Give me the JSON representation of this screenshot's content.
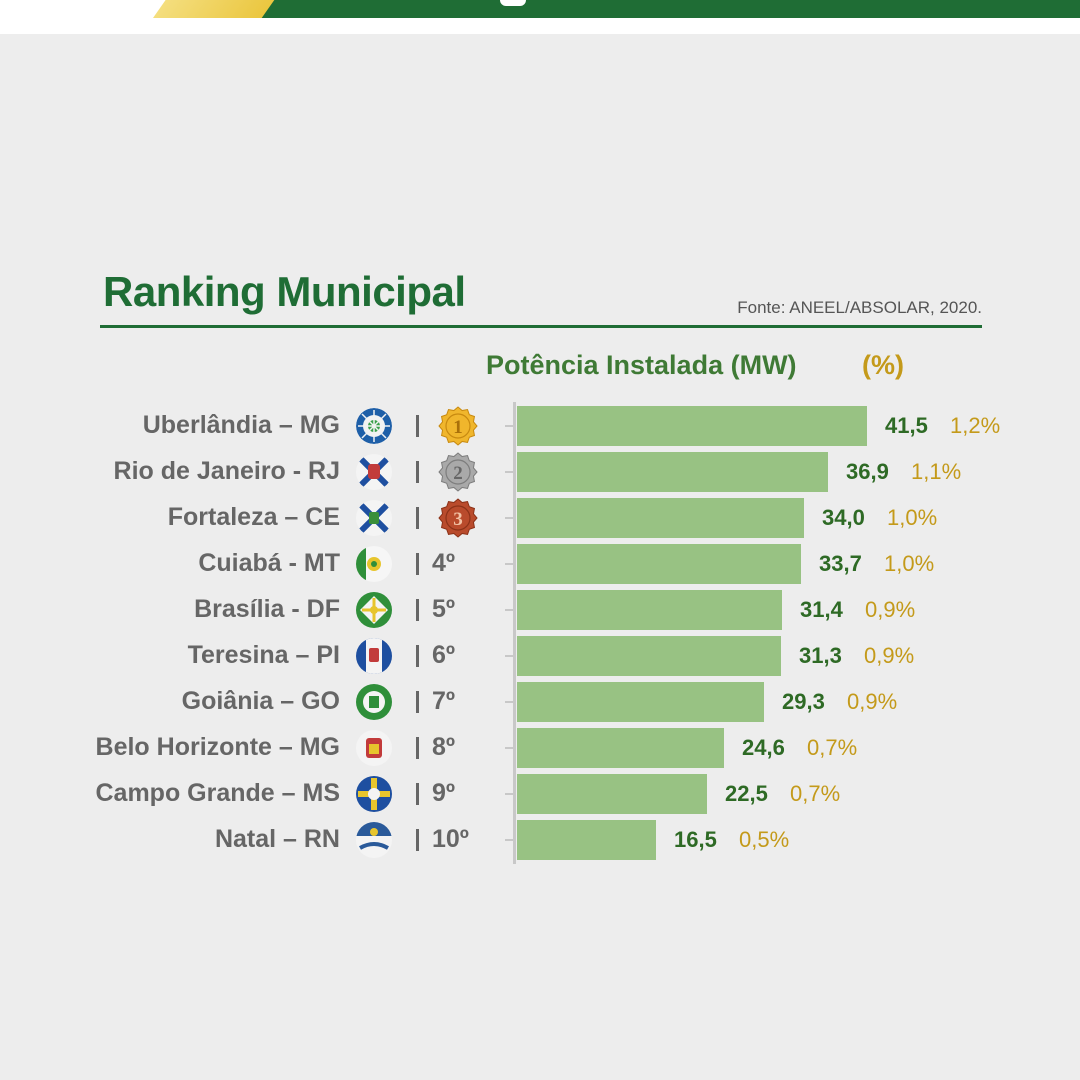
{
  "header": {
    "title": "Ranking Municipal",
    "source": "Fonte: ANEEL/ABSOLAR, 2020.",
    "subtitle_mw": "Potência Instalada (MW)",
    "subtitle_pct": "(%)"
  },
  "colors": {
    "brand_green": "#1f6d35",
    "bar_green": "#98c283",
    "value_green": "#2e6a25",
    "percent_gold": "#c49a1a",
    "label_gray": "#666666"
  },
  "rows": [
    {
      "city": "Uberlândia – MG",
      "rank": "1",
      "emblem": "uberlandia-flag-icon"
    },
    {
      "city": "Rio de Janeiro - RJ",
      "rank": "2",
      "emblem": "rio-de-janeiro-flag-icon"
    },
    {
      "city": "Fortaleza – CE",
      "rank": "3",
      "emblem": "fortaleza-flag-icon"
    },
    {
      "city": "Cuiabá - MT",
      "rank": "4º",
      "emblem": "cuiaba-flag-icon"
    },
    {
      "city": "Brasília - DF",
      "rank": "5º",
      "emblem": "brasilia-flag-icon"
    },
    {
      "city": "Teresina – PI",
      "rank": "6º",
      "emblem": "teresina-flag-icon"
    },
    {
      "city": "Goiânia – GO",
      "rank": "7º",
      "emblem": "goiania-flag-icon"
    },
    {
      "city": "Belo Horizonte – MG",
      "rank": "8º",
      "emblem": "belo-horizonte-flag-icon"
    },
    {
      "city": "Campo Grande – MS",
      "rank": "9º",
      "emblem": "campo-grande-flag-icon"
    },
    {
      "city": "Natal – RN",
      "rank": "10º",
      "emblem": "natal-flag-icon"
    }
  ],
  "chart_data": {
    "type": "bar",
    "orientation": "horizontal",
    "title": "Ranking Municipal",
    "subtitle": "Potência Instalada (MW) (%)",
    "categories": [
      "Uberlândia – MG",
      "Rio de Janeiro - RJ",
      "Fortaleza – CE",
      "Cuiabá - MT",
      "Brasília - DF",
      "Teresina – PI",
      "Goiânia – GO",
      "Belo Horizonte – MG",
      "Campo Grande – MS",
      "Natal – RN"
    ],
    "series": [
      {
        "name": "Potência Instalada (MW)",
        "values": [
          41.5,
          36.9,
          34.0,
          33.7,
          31.4,
          31.3,
          29.3,
          24.6,
          22.5,
          16.5
        ]
      },
      {
        "name": "(%)",
        "values": [
          1.2,
          1.1,
          1.0,
          1.0,
          0.9,
          0.9,
          0.9,
          0.7,
          0.7,
          0.5
        ]
      }
    ],
    "value_labels": [
      "41,5",
      "36,9",
      "34,0",
      "33,7",
      "31,4",
      "31,3",
      "29,3",
      "24,6",
      "22,5",
      "16,5"
    ],
    "percent_labels": [
      "1,2%",
      "1,1%",
      "1,0%",
      "1,0%",
      "0,9%",
      "0,9%",
      "0,9%",
      "0,7%",
      "0,7%",
      "0,5%"
    ],
    "xlim": [
      0,
      41.5
    ],
    "grid": false,
    "legend": "none"
  }
}
